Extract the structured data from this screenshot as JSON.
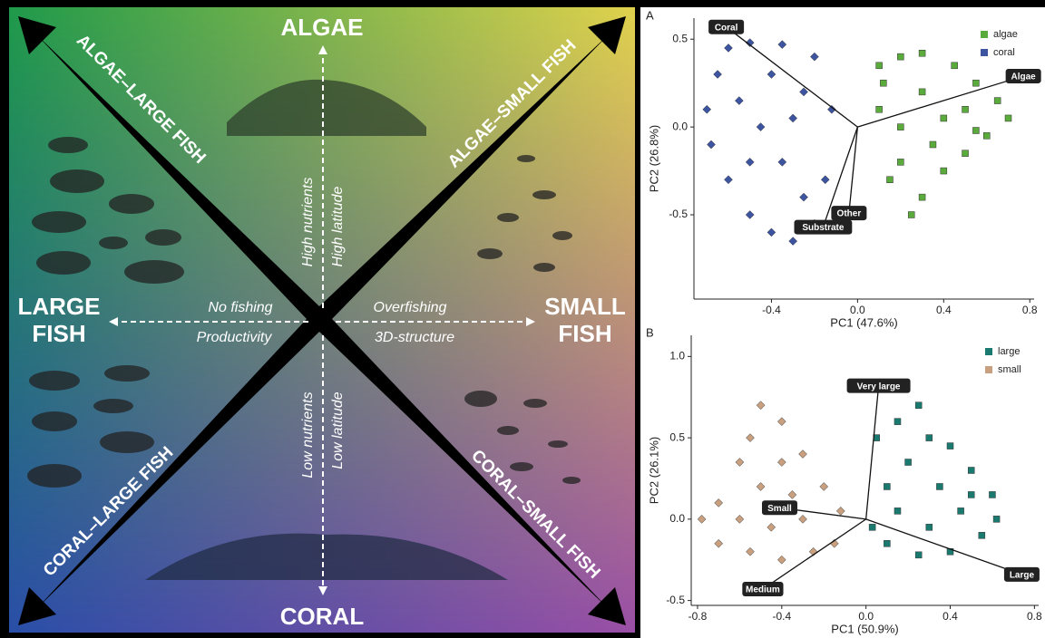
{
  "diagram": {
    "top": "ALGAE",
    "bottom": "CORAL",
    "left": [
      "LARGE",
      "FISH"
    ],
    "right": [
      "SMALL",
      "FISH"
    ],
    "diagonals": [
      "ALGAE–LARGE FISH",
      "ALGAE–SMALL FISH",
      "CORAL–LARGE FISH",
      "CORAL–SMALL FISH"
    ],
    "up": [
      "High nutrients",
      "High latitude"
    ],
    "down": [
      "Low nutrients",
      "Low latitude"
    ],
    "leftaxis": [
      "No fishing",
      "Productivity"
    ],
    "rightaxis": [
      "Overfishing",
      "3D-structure"
    ]
  },
  "chart_data": [
    {
      "type": "scatter",
      "panel": "A",
      "xlabel": "PC1 (47.6%)",
      "ylabel": "PC2 (26.8%)",
      "xlim": [
        -0.76,
        0.82
      ],
      "ylim": [
        -0.98,
        0.62
      ],
      "xticks": [
        -0.4,
        {
          "value": 0,
          "label": "0.0"
        },
        0.4,
        0.8
      ],
      "yticks": [
        0.5,
        {
          "value": 0,
          "label": "0.0"
        },
        -0.5
      ],
      "legend": "top-right",
      "series": [
        {
          "name": "algae",
          "color": "#5aaa3c",
          "marker": "square",
          "x": [
            0.1,
            0.2,
            0.3,
            0.45,
            0.55,
            0.65,
            0.7,
            0.6,
            0.5,
            0.4,
            0.3,
            0.25,
            0.15,
            0.1,
            0.2,
            0.3,
            0.4,
            0.5,
            0.35,
            0.2,
            0.12,
            0.55
          ],
          "y": [
            0.35,
            0.4,
            0.42,
            0.35,
            0.25,
            0.15,
            0.05,
            -0.05,
            -0.15,
            -0.25,
            -0.4,
            -0.5,
            -0.3,
            0.1,
            0.0,
            0.2,
            0.05,
            0.1,
            -0.1,
            -0.2,
            0.25,
            -0.02
          ]
        },
        {
          "name": "coral",
          "color": "#3d55a0",
          "marker": "diamond",
          "x": [
            -0.6,
            -0.5,
            -0.35,
            -0.2,
            -0.65,
            -0.7,
            -0.68,
            -0.6,
            -0.5,
            -0.4,
            -0.3,
            -0.2,
            -0.15,
            -0.12,
            -0.25,
            -0.4,
            -0.45,
            -0.55,
            -0.35,
            -0.25,
            -0.5,
            -0.3
          ],
          "y": [
            0.45,
            0.48,
            0.47,
            0.4,
            0.3,
            0.1,
            -0.1,
            -0.3,
            -0.5,
            -0.6,
            -0.65,
            -0.55,
            -0.3,
            0.1,
            0.2,
            0.3,
            0.0,
            0.15,
            -0.2,
            -0.4,
            -0.2,
            0.05
          ]
        }
      ],
      "loadings": [
        {
          "label": "Coral",
          "x": -0.61,
          "y": 0.57
        },
        {
          "label": "Algae",
          "x": 0.77,
          "y": 0.29
        },
        {
          "label": "Other",
          "x": -0.04,
          "y": -0.49
        },
        {
          "label": "Substrate",
          "x": -0.16,
          "y": -0.57
        }
      ]
    },
    {
      "type": "scatter",
      "panel": "B",
      "xlabel": "PC1 (50.9%)",
      "ylabel": "PC2 (26.1%)",
      "xlim": [
        -0.83,
        0.82
      ],
      "ylim": [
        -0.53,
        1.13
      ],
      "xticks": [
        -0.8,
        -0.4,
        {
          "value": 0,
          "label": "0.0"
        },
        0.4,
        0.8
      ],
      "yticks": [
        {
          "value": 1,
          "label": "1.0"
        },
        0.5,
        {
          "value": 0,
          "label": "0.0"
        },
        -0.5
      ],
      "legend": "top-right",
      "series": [
        {
          "name": "large",
          "color": "#1a7a70",
          "marker": "square",
          "x": [
            0.05,
            0.15,
            0.25,
            0.3,
            0.4,
            0.5,
            0.6,
            0.62,
            0.55,
            0.4,
            0.25,
            0.1,
            0.03,
            0.1,
            0.2,
            0.35,
            0.45,
            0.3,
            0.15,
            0.5
          ],
          "y": [
            0.5,
            0.6,
            0.7,
            0.5,
            0.45,
            0.3,
            0.15,
            0.0,
            -0.1,
            -0.2,
            -0.22,
            -0.15,
            -0.05,
            0.2,
            0.35,
            0.2,
            0.05,
            -0.05,
            0.05,
            0.15
          ]
        },
        {
          "name": "small",
          "color": "#c8a080",
          "marker": "diamond",
          "x": [
            -0.5,
            -0.55,
            -0.6,
            -0.4,
            -0.3,
            -0.7,
            -0.78,
            -0.7,
            -0.55,
            -0.4,
            -0.25,
            -0.15,
            -0.12,
            -0.2,
            -0.35,
            -0.5,
            -0.6,
            -0.45,
            -0.3,
            -0.4
          ],
          "y": [
            0.7,
            0.5,
            0.35,
            0.6,
            0.4,
            0.1,
            0.0,
            -0.15,
            -0.2,
            -0.25,
            -0.2,
            -0.15,
            0.05,
            0.2,
            0.15,
            0.2,
            0.0,
            -0.05,
            0.0,
            0.35
          ]
        }
      ],
      "loadings": [
        {
          "label": "Very large",
          "x": 0.06,
          "y": 0.82
        },
        {
          "label": "Small",
          "x": -0.41,
          "y": 0.07
        },
        {
          "label": "Medium",
          "x": -0.49,
          "y": -0.43
        },
        {
          "label": "Large",
          "x": 0.74,
          "y": -0.34
        }
      ]
    }
  ]
}
